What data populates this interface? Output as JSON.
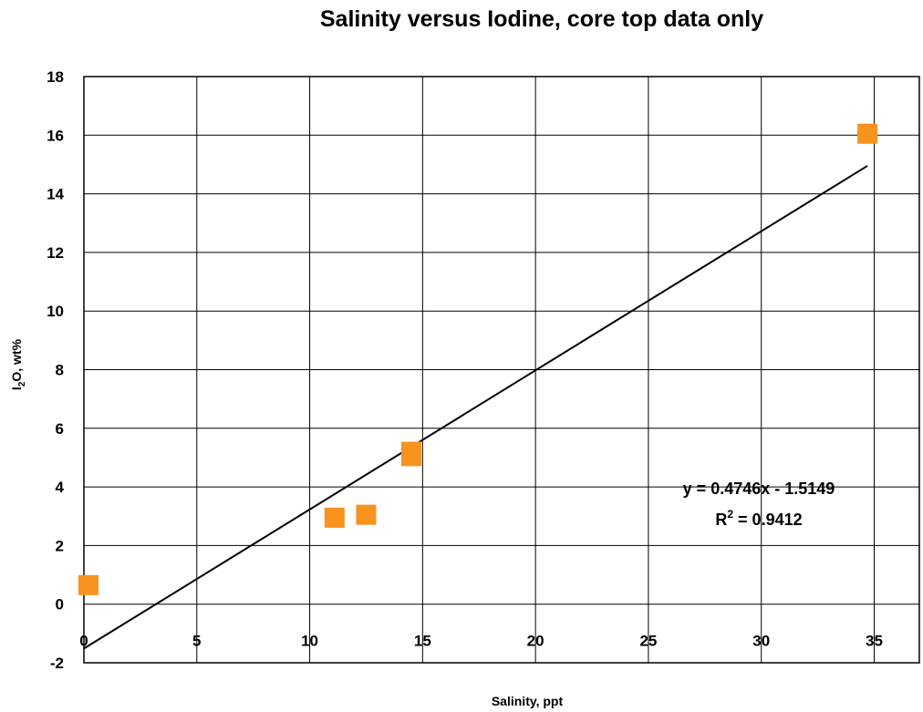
{
  "chart_data": {
    "type": "scatter",
    "title": "Salinity versus Iodine, core top data only",
    "xlabel": "Salinity, ppt",
    "ylabel_main": "I",
    "ylabel_sub": "2",
    "ylabel_rest": "O, wt%",
    "xlim": [
      0,
      37
    ],
    "ylim": [
      -2,
      18
    ],
    "x_ticks": [
      0,
      5,
      10,
      15,
      20,
      25,
      30,
      35
    ],
    "y_ticks": [
      -2,
      0,
      2,
      4,
      6,
      8,
      10,
      12,
      14,
      16,
      18
    ],
    "grid": true,
    "series": [
      {
        "marker": "square",
        "color": "#F7931E",
        "points": [
          {
            "x": 0.2,
            "y": 0.65
          },
          {
            "x": 11.1,
            "y": 2.95
          },
          {
            "x": 12.5,
            "y": 3.05
          },
          {
            "x": 14.5,
            "y": 5.05
          },
          {
            "x": 14.5,
            "y": 5.2
          },
          {
            "x": 34.7,
            "y": 16.05
          }
        ]
      }
    ],
    "trendline": {
      "slope": 0.4746,
      "intercept": -1.5149,
      "x_range": [
        0,
        34.7
      ],
      "equation": "y = 0.4746x - 1.5149",
      "r2_prefix": "R",
      "r2_sup": "2",
      "r2_value": " = 0.9412"
    }
  }
}
